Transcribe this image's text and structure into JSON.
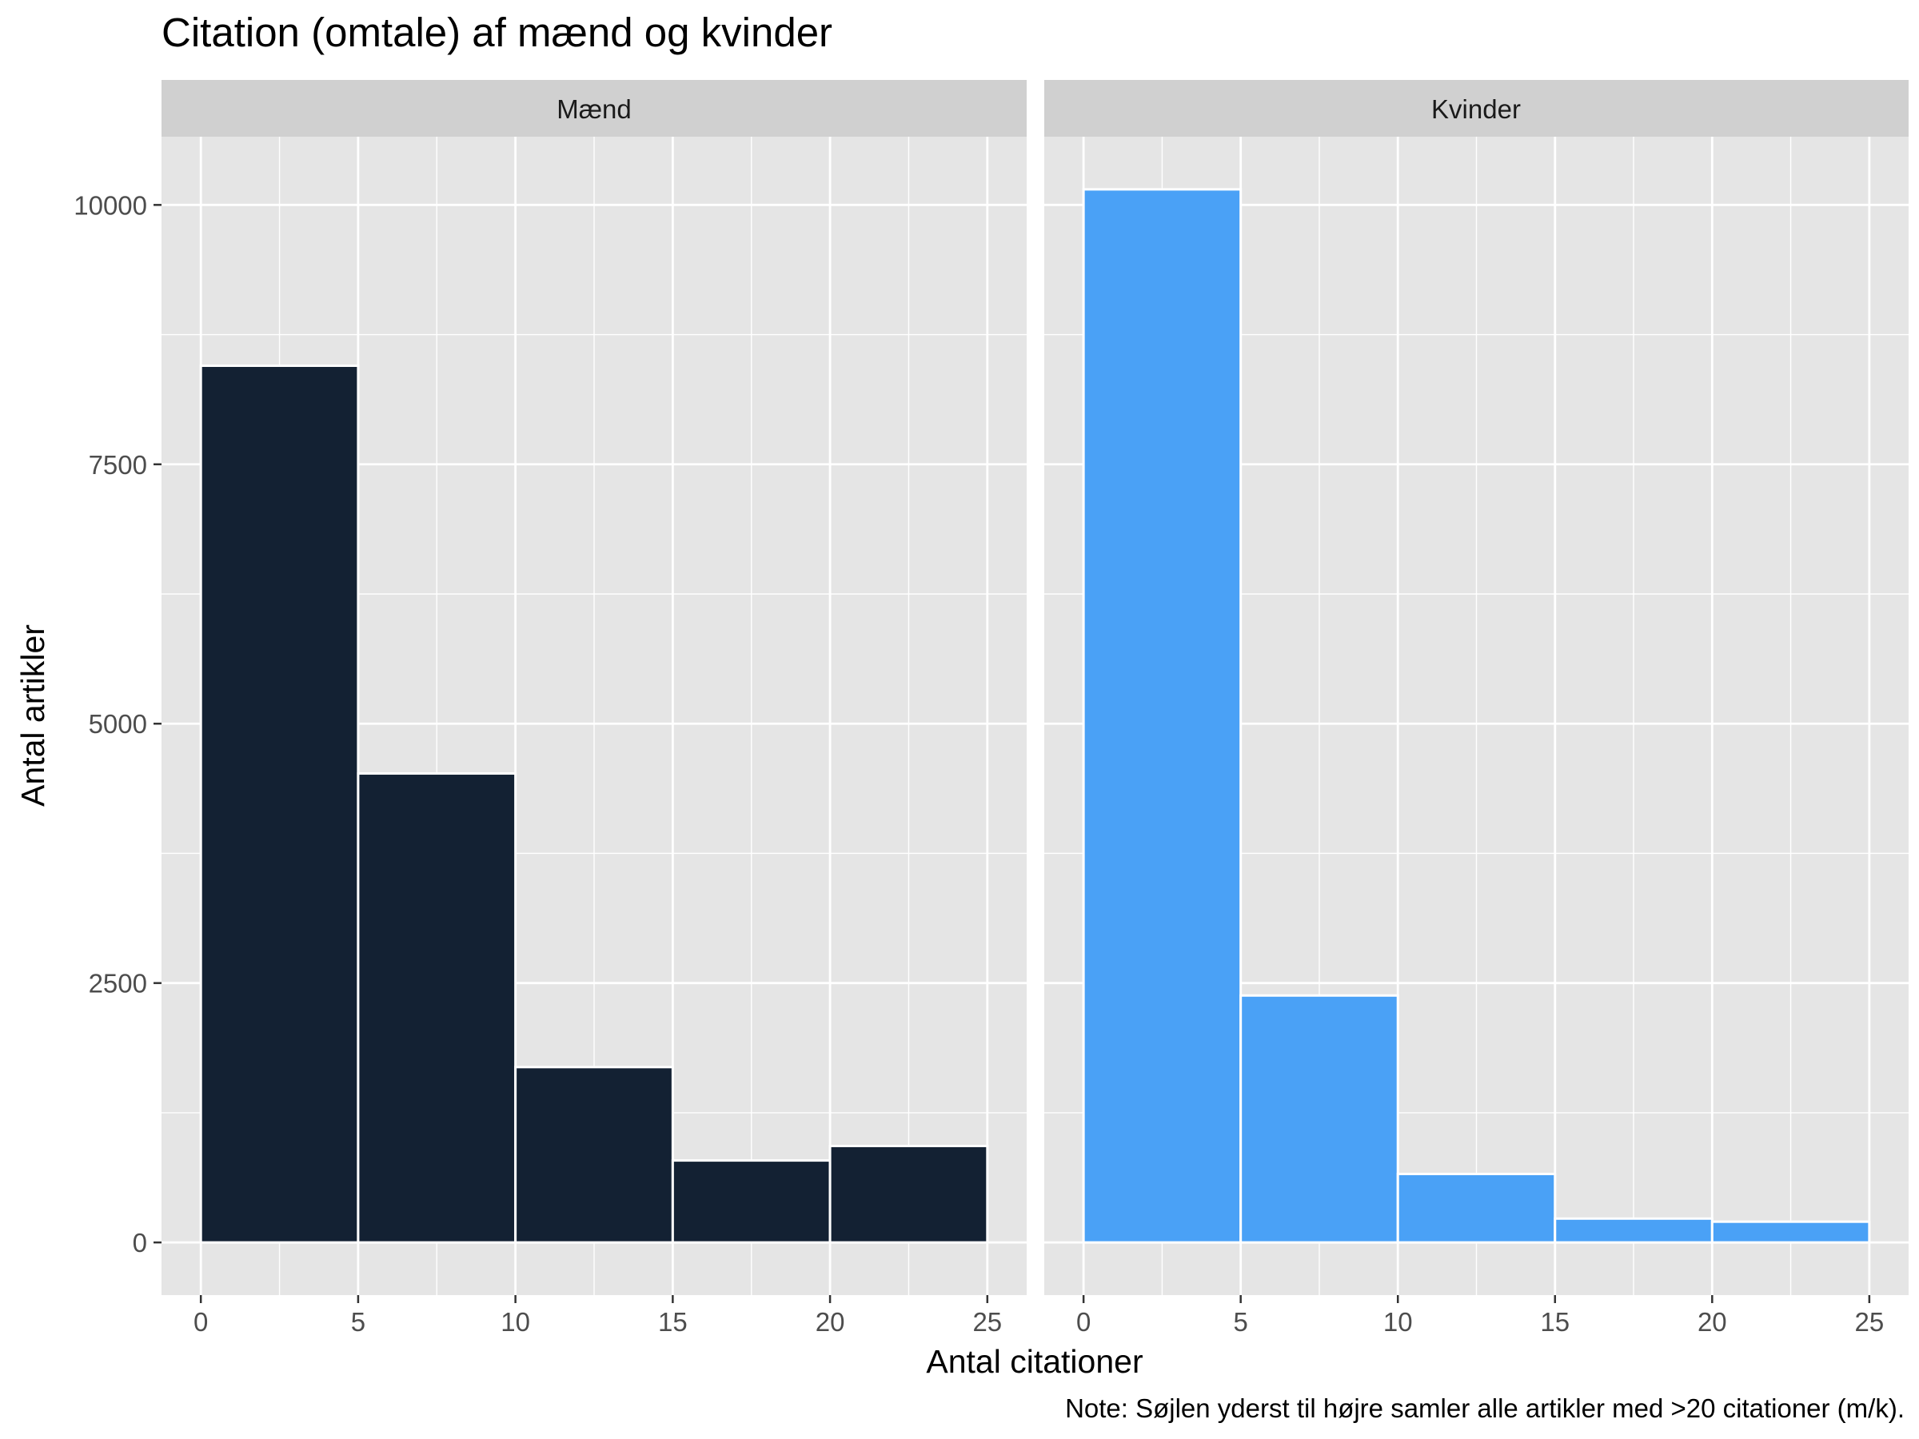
{
  "chart_data": {
    "type": "bar",
    "subtype": "histogram-faceted",
    "title": "Citation (omtale) af mænd og kvinder",
    "xlabel": "Antal citationer",
    "ylabel": "Antal artikler",
    "caption": "Note: Søjlen yderst til højre samler alle artikler med >20 citationer (m/k).",
    "xlim": [
      -1.25,
      26.25
    ],
    "ylim": [
      -507.5,
      10657.5
    ],
    "x_ticks": [
      "0",
      "5",
      "10",
      "15",
      "20",
      "25"
    ],
    "y_ticks": [
      "0",
      "2500",
      "5000",
      "7500",
      "10000"
    ],
    "grid": true,
    "bin_edges": [
      0,
      5,
      10,
      15,
      20,
      25
    ],
    "background_color": "#e5e5e5",
    "strip_color": "#d0d0d0",
    "grid_color": "#ffffff",
    "facets": [
      {
        "name": "Mænd",
        "color": "#132133",
        "bins": [
          {
            "x0": 0,
            "x1": 5,
            "value": 8450
          },
          {
            "x0": 5,
            "x1": 10,
            "value": 4520
          },
          {
            "x0": 10,
            "x1": 15,
            "value": 1690
          },
          {
            "x0": 15,
            "x1": 20,
            "value": 790
          },
          {
            "x0": 20,
            "x1": 25,
            "value": 930
          }
        ]
      },
      {
        "name": "Kvinder",
        "color": "#4aa1f6",
        "bins": [
          {
            "x0": 0,
            "x1": 5,
            "value": 10150
          },
          {
            "x0": 5,
            "x1": 10,
            "value": 2380
          },
          {
            "x0": 10,
            "x1": 15,
            "value": 660
          },
          {
            "x0": 15,
            "x1": 20,
            "value": 230
          },
          {
            "x0": 20,
            "x1": 25,
            "value": 200
          }
        ]
      }
    ]
  }
}
